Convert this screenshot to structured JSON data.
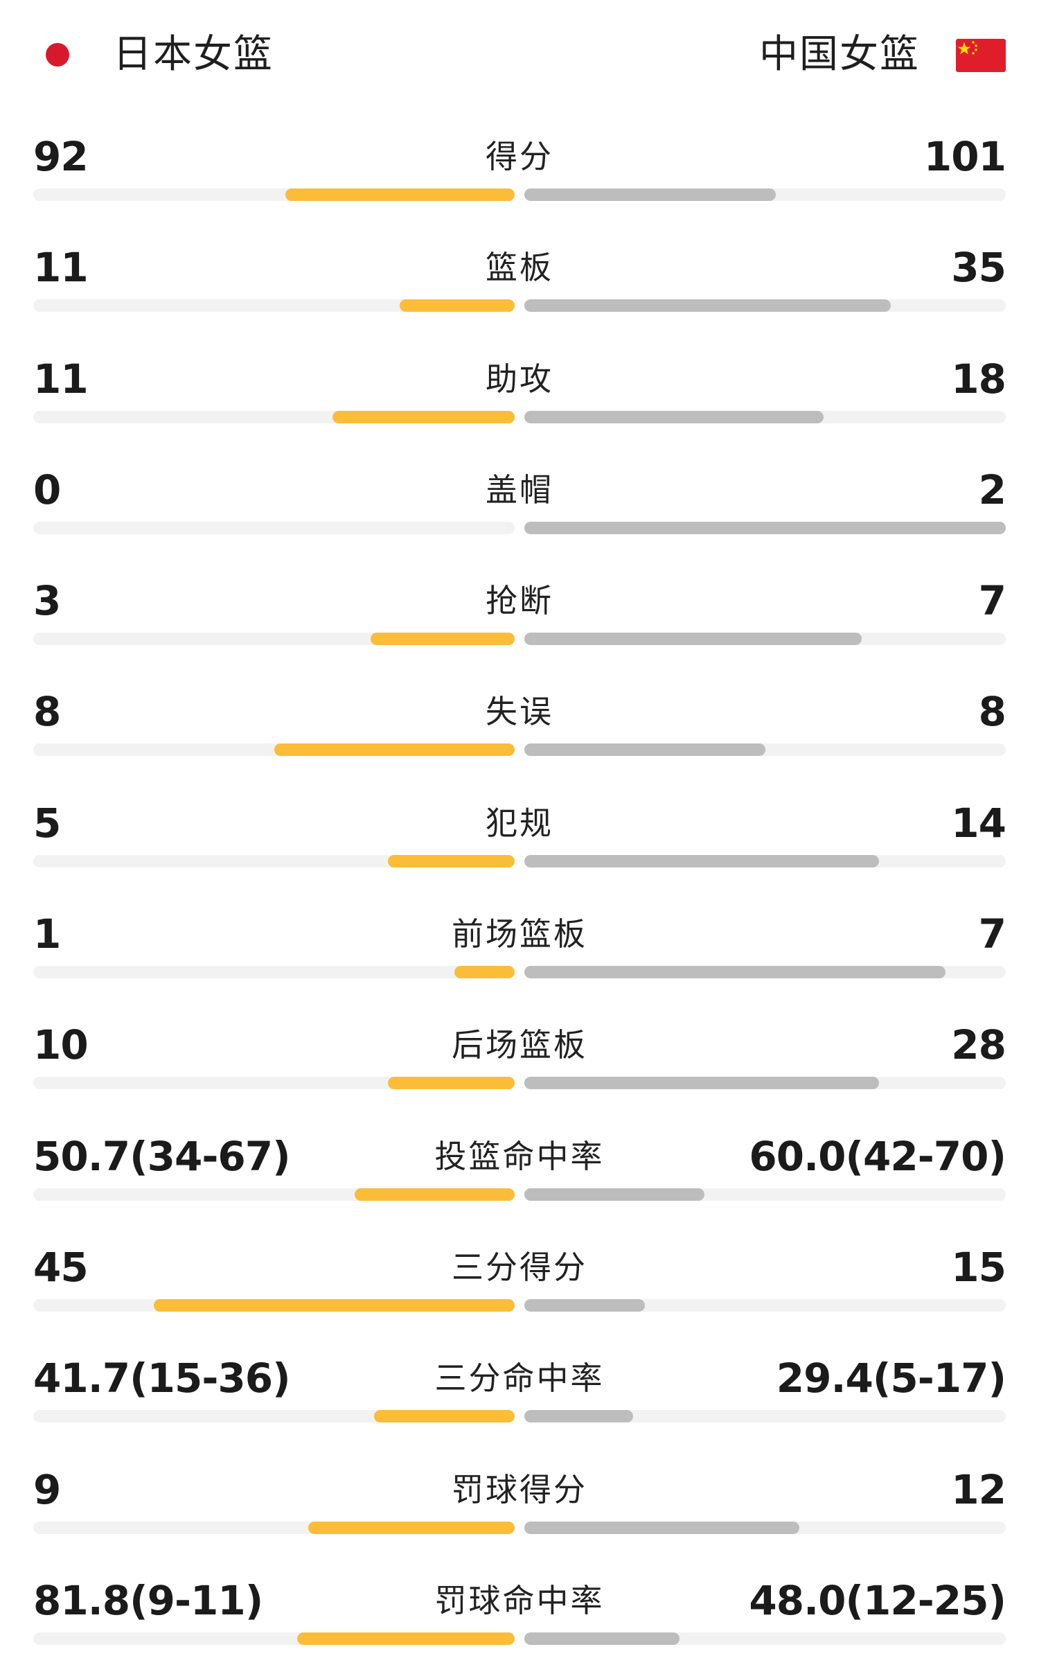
{
  "header": {
    "left_team": "日本女篮",
    "right_team": "中国女篮",
    "left_flag_icon": "japan-flag-icon",
    "right_flag_icon": "china-flag-icon"
  },
  "colors": {
    "left_bar": "#fbbd38",
    "right_bar": "#bdbdbd",
    "track": "#f2f2f2",
    "japan_red": "#d7192b",
    "china_red": "#e01d2a",
    "china_star": "#ffde00"
  },
  "stats": [
    {
      "label": "得分",
      "left": "92",
      "right": "101",
      "left_fraction": 0.477,
      "right_fraction": 0.523
    },
    {
      "label": "篮板",
      "left": "11",
      "right": "35",
      "left_fraction": 0.239,
      "right_fraction": 0.761
    },
    {
      "label": "助攻",
      "left": "11",
      "right": "18",
      "left_fraction": 0.379,
      "right_fraction": 0.621
    },
    {
      "label": "盖帽",
      "left": "0",
      "right": "2",
      "left_fraction": 0.0,
      "right_fraction": 1.0
    },
    {
      "label": "抢断",
      "left": "3",
      "right": "7",
      "left_fraction": 0.3,
      "right_fraction": 0.7
    },
    {
      "label": "失误",
      "left": "8",
      "right": "8",
      "left_fraction": 0.5,
      "right_fraction": 0.5
    },
    {
      "label": "犯规",
      "left": "5",
      "right": "14",
      "left_fraction": 0.263,
      "right_fraction": 0.737
    },
    {
      "label": "前场篮板",
      "left": "1",
      "right": "7",
      "left_fraction": 0.125,
      "right_fraction": 0.875
    },
    {
      "label": "后场篮板",
      "left": "10",
      "right": "28",
      "left_fraction": 0.263,
      "right_fraction": 0.737
    },
    {
      "label": "投篮命中率",
      "left": "50.7(34-67)",
      "right": "60.0(42-70)",
      "left_fraction": 0.333,
      "right_fraction": 0.374
    },
    {
      "label": "三分得分",
      "left": "45",
      "right": "15",
      "left_fraction": 0.75,
      "right_fraction": 0.25
    },
    {
      "label": "三分命中率",
      "left": "41.7(15-36)",
      "right": "29.4(5-17)",
      "left_fraction": 0.292,
      "right_fraction": 0.226
    },
    {
      "label": "罚球得分",
      "left": "9",
      "right": "12",
      "left_fraction": 0.429,
      "right_fraction": 0.571
    },
    {
      "label": "罚球命中率",
      "left": "81.8(9-11)",
      "right": "48.0(12-25)",
      "left_fraction": 0.452,
      "right_fraction": 0.322
    }
  ]
}
